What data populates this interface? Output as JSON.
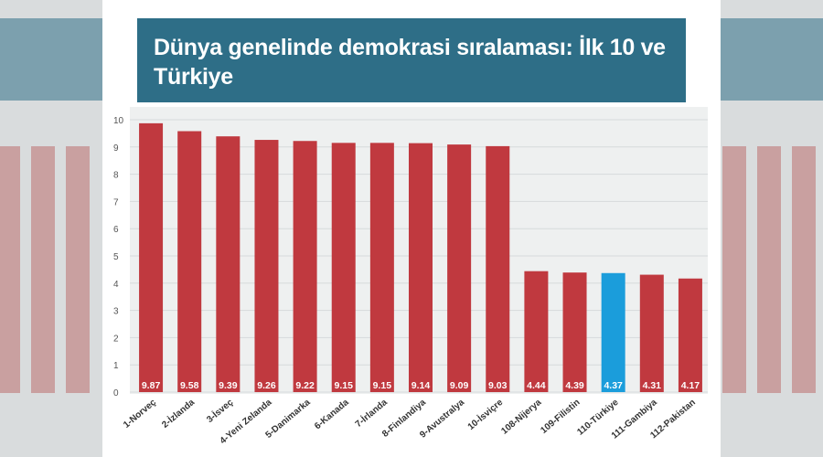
{
  "header": {
    "title": "Dünya genelinde demokrasi sıralaması: İlk 10 ve Türkiye"
  },
  "colors": {
    "bar": "#c0393f",
    "highlight": "#1b9ddb",
    "title_bg": "#2e6e87",
    "grid": "#d6dadb",
    "plot_bg": "#eef0f0"
  },
  "chart_data": {
    "type": "bar",
    "title": "Dünya genelinde demokrasi sıralaması: İlk 10 ve Türkiye",
    "xlabel": "",
    "ylabel": "",
    "ylim": [
      0,
      10
    ],
    "yticks": [
      "0",
      "1",
      "2",
      "3",
      "4",
      "5",
      "6",
      "7",
      "8",
      "9",
      "10"
    ],
    "grid": true,
    "categories": [
      "1-Norveç",
      "2-İzlanda",
      "3-İsveç",
      "4-Yeni Zelanda",
      "5-Danimarka",
      "6-Kanada",
      "7-İrlanda",
      "8-Finlandiya",
      "9-Avustralya",
      "10-İsviçre",
      "108-Nijerya",
      "109-Filistin",
      "110-Türkiye",
      "111-Gambiya",
      "112-Pakistan"
    ],
    "values": [
      9.87,
      9.58,
      9.39,
      9.26,
      9.22,
      9.15,
      9.15,
      9.14,
      9.09,
      9.03,
      4.44,
      4.39,
      4.37,
      4.31,
      4.17
    ],
    "value_labels": [
      "9.87",
      "9.58",
      "9.39",
      "9.26",
      "9.22",
      "9.15",
      "9.15",
      "9.14",
      "9.09",
      "9.03",
      "4.44",
      "4.39",
      "4.37",
      "4.31",
      "4.17"
    ],
    "highlight_category": "110-Türkiye"
  }
}
